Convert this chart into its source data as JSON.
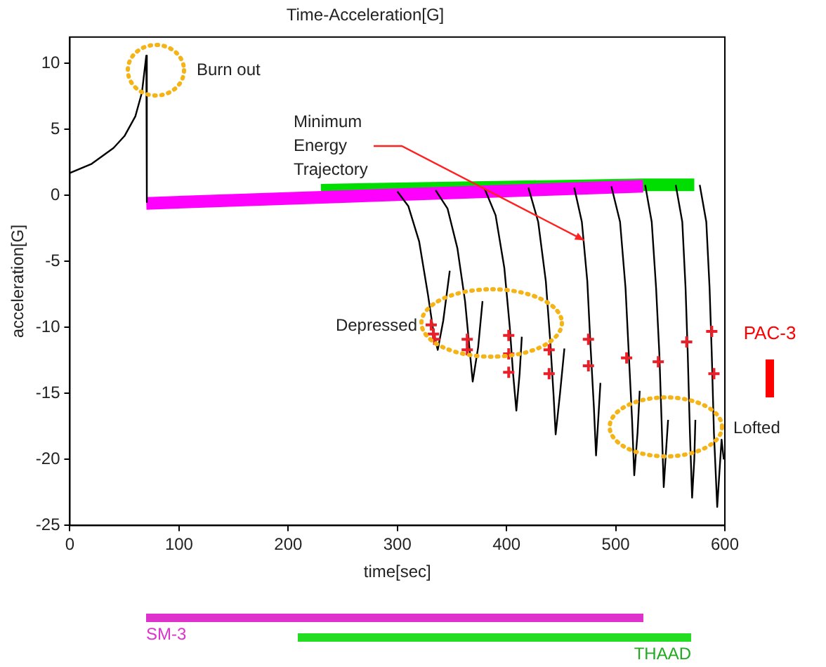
{
  "chart_data": {
    "type": "line",
    "title": "Time-Acceleration[G]",
    "xlabel": "time[sec]",
    "ylabel": "acceleration[G]",
    "xlim": [
      0,
      600
    ],
    "xticks": [
      0,
      100,
      200,
      300,
      400,
      500,
      600
    ],
    "ylim": [
      -25,
      12
    ],
    "yticks": [
      -25,
      -20,
      -15,
      -10,
      -5,
      0,
      5,
      10
    ],
    "grid": false,
    "legend": false,
    "line_style": "solid",
    "marker": "none",
    "series": [
      {
        "color": "#00dd00",
        "x": [
          230,
          525,
          572
        ],
        "values": [
          0.4,
          0.8,
          0.8
        ]
      },
      {
        "color": "#ff00ff",
        "x": [
          70,
          525
        ],
        "values": [
          -0.6,
          0.7
        ]
      },
      {
        "color": "#000000",
        "x": [
          0,
          20,
          40,
          50,
          60,
          66,
          70,
          70.5
        ],
        "values": [
          1.7,
          2.4,
          3.6,
          4.5,
          6.0,
          7.8,
          10.6,
          -0.5
        ]
      },
      {
        "color": "#000000",
        "x": [
          300,
          310,
          320,
          328,
          333,
          337,
          342,
          348
        ],
        "values": [
          0.3,
          -0.8,
          -3.5,
          -7.5,
          -10.3,
          -11.7,
          -9.5,
          -5.7
        ]
      },
      {
        "color": "#000000",
        "x": [
          335,
          346,
          355,
          362,
          366,
          369,
          374,
          378
        ],
        "values": [
          0.4,
          -1,
          -4,
          -8,
          -11.5,
          -14.1,
          -11.5,
          -8
        ]
      },
      {
        "color": "#000000",
        "x": [
          380,
          390,
          398,
          403,
          406,
          409,
          412,
          414
        ],
        "values": [
          0.5,
          -1.5,
          -5.5,
          -10,
          -13.5,
          -16.3,
          -13.5,
          -10.7
        ]
      },
      {
        "color": "#000000",
        "x": [
          420,
          429,
          436,
          440,
          443,
          445,
          449,
          453
        ],
        "values": [
          0.6,
          -2,
          -6.5,
          -11,
          -15,
          -18.1,
          -15,
          -11.6
        ]
      },
      {
        "color": "#000000",
        "x": [
          462,
          469,
          474,
          477,
          480,
          482,
          484,
          486
        ],
        "values": [
          0.6,
          -2,
          -6.5,
          -11.5,
          -16,
          -19.7,
          -17,
          -14.2
        ]
      },
      {
        "color": "#000000",
        "x": [
          496,
          504,
          509,
          512,
          515,
          517,
          520,
          522
        ],
        "values": [
          0.7,
          -2,
          -7,
          -12,
          -17,
          -21.2,
          -18,
          -14.8
        ]
      },
      {
        "color": "#000000",
        "x": [
          527,
          533,
          537,
          540,
          542,
          544,
          546,
          548
        ],
        "values": [
          0.8,
          -2,
          -7,
          -12,
          -17,
          -22.1,
          -19.5,
          -17
        ]
      },
      {
        "color": "#000000",
        "x": [
          555,
          561,
          564,
          566,
          568,
          570,
          572,
          573
        ],
        "values": [
          0.8,
          -2,
          -7,
          -12,
          -18,
          -22.9,
          -20,
          -17
        ]
      },
      {
        "color": "#000000",
        "x": [
          577,
          583,
          586,
          588,
          590,
          593,
          595,
          597,
          599
        ],
        "values": [
          0.8,
          -2,
          -7,
          -12,
          -18,
          -23.6,
          -21,
          -18.5,
          -20
        ]
      },
      {
        "type": "scatter",
        "color": "#e8202a",
        "marker": "cross",
        "x": [
          331,
          333,
          334,
          364,
          364,
          402,
          402,
          402,
          439,
          439,
          475,
          475,
          510,
          539,
          565,
          588,
          590
        ],
        "values": [
          -9.8,
          -10.5,
          -10.9,
          -10.9,
          -11.7,
          -10.6,
          -12,
          -13.4,
          -11.7,
          -13.5,
          -10.9,
          -12.9,
          -12.3,
          -12.6,
          -11.1,
          -10.3,
          -13.5
        ]
      }
    ],
    "annotations": [
      "Burn out",
      {
        "text": "Minimum Energy Trajectory",
        "x": 471,
        "y": -3.4
      },
      "Depressed",
      "Lofted",
      "SM-3",
      "THAAD",
      "PAC-3"
    ]
  }
}
